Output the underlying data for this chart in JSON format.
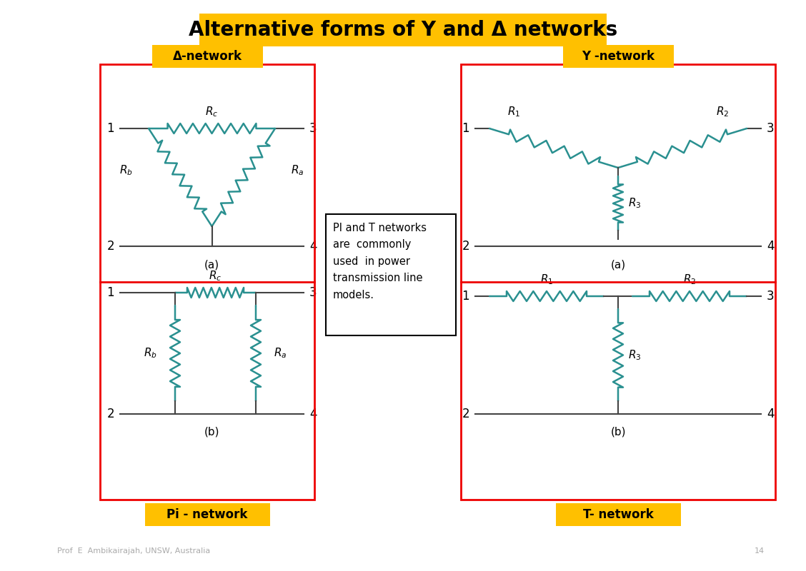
{
  "title": "Alternative forms of Y and Δ networks",
  "title_bg": "#FFC000",
  "title_fontsize": 20,
  "footer_text": "Prof  E  Ambikairajah, UNSW, Australia",
  "page_num": "14",
  "footer_color": "#aaaaaa",
  "bg_color": "#ffffff",
  "resistor_color": "#2a9090",
  "line_color": "#444444",
  "red_border": "#ee0000",
  "label_color": "#FFC000",
  "delta_label": "Δ-network",
  "pi_label": "Pi - network",
  "y_label": "Y -network",
  "t_label": "T- network",
  "note_text": "PI and T networks\nare  commonly\nused  in power\ntransmission line\nmodels."
}
